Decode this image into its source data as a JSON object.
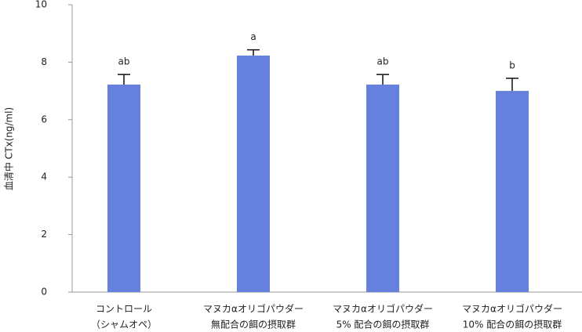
{
  "chart_data": {
    "type": "bar",
    "y_label": "血清中 CTx(ng/ml)",
    "categories": [
      [
        "コントロール",
        "（シャムオペ）"
      ],
      [
        "マヌカαオリゴパウダー",
        "無配合の餌の摂取群"
      ],
      [
        "マヌカαオリゴパウダー",
        "5% 配合の餌の摂取群"
      ],
      [
        "マヌカαオリゴパウダー",
        "10% 配合の餌の摂取群"
      ]
    ],
    "values": [
      7.22,
      8.23,
      7.22,
      7.0
    ],
    "errors": [
      0.35,
      0.2,
      0.35,
      0.44
    ],
    "value_labels": [
      "ab",
      "a",
      "ab",
      "b"
    ],
    "color": "#6680dd",
    "ylim": [
      0,
      10
    ],
    "yticks": [
      0,
      2,
      4,
      6,
      8,
      10
    ],
    "grid": false
  }
}
